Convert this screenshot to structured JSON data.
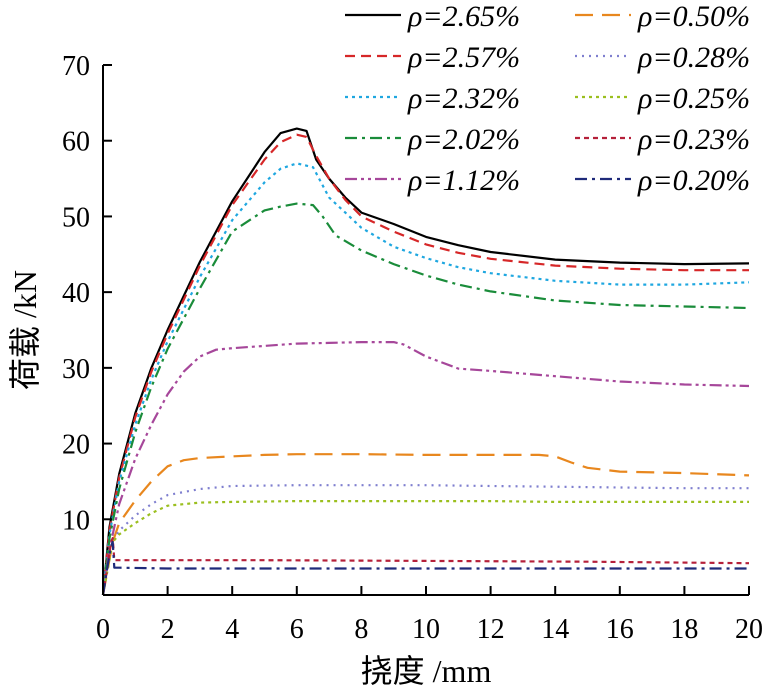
{
  "chart_data": {
    "type": "line",
    "title": "",
    "xlabel": "挠度 /mm",
    "ylabel": "荷载 /kN",
    "xlim": [
      0,
      20
    ],
    "ylim": [
      0,
      70
    ],
    "xticks": [
      0,
      2,
      4,
      6,
      8,
      10,
      12,
      14,
      16,
      18,
      20
    ],
    "yticks": [
      10,
      20,
      30,
      40,
      50,
      60,
      70
    ],
    "grid": false,
    "legend_position": "top-right",
    "series": [
      {
        "name": "ρ=2.65%",
        "color": "#000000",
        "dash": "solid",
        "x": [
          0,
          0.2,
          0.5,
          1,
          1.5,
          2,
          3,
          4,
          5,
          5.5,
          6,
          6.3,
          6.6,
          7,
          7.5,
          8,
          9,
          10,
          11,
          12,
          14,
          16,
          18,
          20
        ],
        "y": [
          0,
          9,
          16,
          24,
          30,
          35,
          44,
          52,
          58.5,
          61,
          61.6,
          61.3,
          57.5,
          55,
          52.5,
          50.5,
          49,
          47.3,
          46.2,
          45.3,
          44.3,
          43.9,
          43.7,
          43.8
        ]
      },
      {
        "name": "ρ=2.57%",
        "color": "#d62728",
        "dash": "dash",
        "x": [
          0,
          0.2,
          0.5,
          1,
          1.5,
          2,
          3,
          4,
          5,
          5.5,
          6,
          6.3,
          6.6,
          7,
          7.5,
          8,
          9,
          10,
          11,
          12,
          14,
          16,
          18,
          20
        ],
        "y": [
          0,
          8.5,
          15.5,
          23.5,
          29.5,
          34.5,
          43.5,
          51.5,
          57.5,
          59.8,
          60.8,
          60.5,
          58,
          55,
          52.2,
          50,
          48,
          46.3,
          45.2,
          44.4,
          43.5,
          43.1,
          42.9,
          42.9
        ]
      },
      {
        "name": "ρ=2.32%",
        "color": "#1fa7e0",
        "dash": "dot",
        "x": [
          0,
          0.2,
          0.5,
          1,
          1.5,
          2,
          3,
          4,
          5,
          5.5,
          6,
          6.5,
          7,
          7.5,
          8,
          9,
          10,
          11,
          12,
          14,
          16,
          18,
          20
        ],
        "y": [
          0,
          8,
          15,
          22.5,
          28.5,
          33.5,
          42,
          49.5,
          54.5,
          56.3,
          57,
          56.5,
          52.5,
          50.5,
          48.5,
          46,
          44.5,
          43.3,
          42.5,
          41.5,
          41,
          41,
          41.3
        ]
      },
      {
        "name": "ρ=2.02%",
        "color": "#1a8c3a",
        "dash": "dashdot",
        "x": [
          0,
          0.2,
          0.5,
          1,
          1.5,
          2,
          3,
          4,
          5,
          5.5,
          6,
          6.5,
          6.8,
          7.2,
          8,
          9,
          10,
          11,
          12,
          14,
          16,
          18,
          20
        ],
        "y": [
          0,
          7.5,
          14,
          21.5,
          27.5,
          32.5,
          40.5,
          48,
          50.8,
          51.3,
          51.7,
          51.5,
          50,
          47.5,
          45.5,
          43.7,
          42.2,
          41,
          40.1,
          38.9,
          38.3,
          38.1,
          37.9
        ]
      },
      {
        "name": "ρ=1.12%",
        "color": "#a6479a",
        "dash": "dashdotdot",
        "x": [
          0,
          0.2,
          0.5,
          1,
          1.5,
          2,
          2.5,
          3,
          3.5,
          4,
          5,
          6,
          7,
          8,
          9,
          9.3,
          10,
          11,
          12,
          14,
          16,
          18,
          20
        ],
        "y": [
          0,
          6,
          12,
          18,
          22.5,
          26.5,
          29.5,
          31.5,
          32.4,
          32.6,
          32.9,
          33.2,
          33.3,
          33.4,
          33.4,
          33.1,
          31.5,
          29.9,
          29.6,
          28.9,
          28.2,
          27.8,
          27.6
        ]
      },
      {
        "name": "ρ=0.50%",
        "color": "#e8871e",
        "dash": "longdash",
        "x": [
          0,
          0.3,
          0.5,
          1,
          1.5,
          2,
          2.5,
          3,
          4,
          5,
          6,
          8,
          10,
          12,
          13.5,
          14,
          14.5,
          15,
          16,
          18,
          20
        ],
        "y": [
          0,
          7,
          9.5,
          12.5,
          15,
          17,
          17.8,
          18.1,
          18.3,
          18.5,
          18.6,
          18.6,
          18.5,
          18.5,
          18.5,
          18.3,
          17.5,
          16.8,
          16.3,
          16.1,
          15.8
        ]
      },
      {
        "name": "ρ=0.28%",
        "color": "#7f7fcf",
        "dash": "smalldot",
        "x": [
          0,
          0.3,
          0.5,
          1,
          1.5,
          2,
          3,
          4,
          6,
          8,
          10,
          12,
          14,
          16,
          18,
          20
        ],
        "y": [
          0,
          7,
          8.5,
          10.5,
          12,
          13.2,
          14,
          14.4,
          14.5,
          14.5,
          14.5,
          14.4,
          14.3,
          14.2,
          14.1,
          14.1
        ]
      },
      {
        "name": "ρ=0.25%",
        "color": "#9bbf1f",
        "dash": "dot",
        "x": [
          0,
          0.3,
          0.5,
          1,
          1.5,
          2,
          3,
          4,
          6,
          8,
          10,
          12,
          14,
          16,
          18,
          20
        ],
        "y": [
          0,
          7,
          8,
          9.5,
          10.8,
          11.8,
          12.2,
          12.3,
          12.4,
          12.4,
          12.4,
          12.4,
          12.3,
          12.3,
          12.3,
          12.3
        ]
      },
      {
        "name": "ρ=0.23%",
        "color": "#b5203a",
        "dash": "shortdash",
        "x": [
          0,
          0.15,
          0.25,
          0.3,
          0.35,
          0.5,
          2,
          5,
          10,
          15,
          20
        ],
        "y": [
          0,
          4,
          7,
          7.5,
          4.6,
          4.6,
          4.6,
          4.6,
          4.5,
          4.4,
          4.2
        ]
      },
      {
        "name": "ρ=0.20%",
        "color": "#1f2a7a",
        "dash": "dashdot",
        "x": [
          0,
          0.15,
          0.25,
          0.3,
          0.35,
          0.5,
          2,
          5,
          10,
          15,
          20
        ],
        "y": [
          0,
          4,
          6.5,
          7,
          3.6,
          3.6,
          3.5,
          3.5,
          3.5,
          3.5,
          3.5
        ]
      }
    ]
  }
}
